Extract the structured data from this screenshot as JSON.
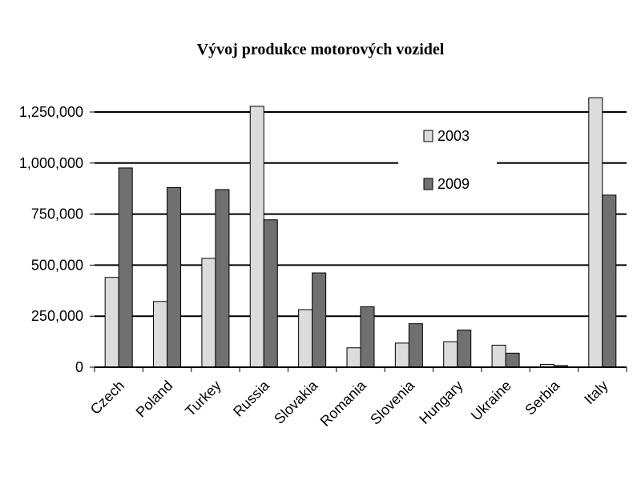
{
  "chart_data": {
    "type": "bar",
    "title": "Vývoj produkce motorových vozidel",
    "xlabel": "",
    "ylabel": "",
    "ylim": [
      0,
      1250000
    ],
    "yticks": [
      0,
      250000,
      500000,
      750000,
      1000000,
      1250000
    ],
    "ytick_labels": [
      "0",
      "250,000",
      "500,000",
      "750,000",
      "1,000,000",
      "1,250,000"
    ],
    "grid": true,
    "legend_position": "top-right",
    "categories": [
      "Czech",
      "Poland",
      "Turkey",
      "Russia",
      "Slovakia",
      "Romania",
      "Slovenia",
      "Hungary",
      "Ukraine",
      "Serbia",
      "Italy"
    ],
    "series": [
      {
        "name": "2003",
        "color": "#dcdcdc",
        "values": [
          440000,
          322000,
          533000,
          1278000,
          282000,
          95000,
          118000,
          125000,
          108000,
          14000,
          1320000
        ]
      },
      {
        "name": "2009",
        "color": "#707070",
        "values": [
          976000,
          880000,
          870000,
          722000,
          462000,
          296000,
          213000,
          182000,
          69000,
          8000,
          843000
        ]
      }
    ]
  }
}
